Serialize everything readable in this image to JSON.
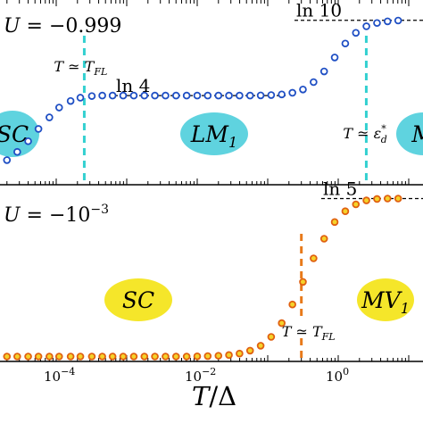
{
  "chart_data": [
    {
      "type": "scatter",
      "panel": "top",
      "title": "U = −0.999",
      "title_parts": {
        "var": "U",
        "rest": " = −0.999"
      },
      "xscale": "log",
      "xlim": [
        1e-05,
        10
      ],
      "ylim": [
        0.3,
        2.55
      ],
      "marker": {
        "edge": "#1f4fc4",
        "face": "#ffffff"
      },
      "series": [
        {
          "x": [
            1e-05,
            1.4e-05,
            2e-05,
            2.8e-05,
            4e-05,
            5.6e-05,
            8e-05,
            0.00011,
            0.00016,
            0.00022,
            0.00032,
            0.00045,
            0.00063,
            0.00089,
            0.00126,
            0.00178,
            0.00251,
            0.00355,
            0.00501,
            0.00708,
            0.01,
            0.0141,
            0.02,
            0.0282,
            0.0398,
            0.0562,
            0.0794,
            0.112,
            0.158,
            0.224,
            0.316,
            0.447,
            0.631,
            0.891,
            1.26,
            1.78,
            2.51,
            3.55,
            5.01,
            7.08
          ],
          "y": [
            0.45,
            0.52,
            0.6,
            0.7,
            0.83,
            0.98,
            1.12,
            1.24,
            1.32,
            1.36,
            1.38,
            1.386,
            1.386,
            1.386,
            1.386,
            1.386,
            1.386,
            1.386,
            1.386,
            1.386,
            1.386,
            1.386,
            1.386,
            1.386,
            1.386,
            1.386,
            1.388,
            1.392,
            1.4,
            1.42,
            1.46,
            1.55,
            1.68,
            1.85,
            2.02,
            2.15,
            2.23,
            2.27,
            2.29,
            2.3
          ]
        }
      ],
      "reference_lines": [
        {
          "label": "ln 4",
          "y": 1.386
        },
        {
          "label": "ln 10",
          "y": 2.303
        }
      ],
      "vertical_markers": [
        {
          "x": 0.00025,
          "color": "#33d0d0",
          "label": {
            "var": "T",
            "op": " ≃ ",
            "sym": "T",
            "sub": "FL"
          }
        },
        {
          "x": 2.5,
          "color": "#33d0d0",
          "label": {
            "var": "T",
            "op": " ≃ ",
            "sym": "ε",
            "sup": "*",
            "sub": "d"
          }
        }
      ],
      "regions": [
        {
          "label": "SC",
          "sub": "",
          "color": "#5fd3df"
        },
        {
          "label": "LM",
          "sub": "1",
          "color": "#5fd3df"
        },
        {
          "label": "M",
          "sub": "",
          "color": "#5fd3df"
        }
      ]
    },
    {
      "type": "scatter",
      "panel": "bottom",
      "title": "U = −10⁻³",
      "title_parts": {
        "var": "U",
        "rest": " = −10",
        "sup": "−3"
      },
      "xscale": "log",
      "xlabel": "T/Δ",
      "xlabel_parts": {
        "var": "T",
        "rest": "/Δ"
      },
      "xticks": [
        {
          "value": 0.0001,
          "base": "10",
          "exp": "−4"
        },
        {
          "value": 0.01,
          "base": "10",
          "exp": "−2"
        },
        {
          "value": 1,
          "base": "10",
          "exp": "0"
        }
      ],
      "xlim": [
        1e-05,
        10
      ],
      "ylim": [
        -0.05,
        1.75
      ],
      "marker": {
        "edge": "#e06010",
        "face": "#f5d22a"
      },
      "series": [
        {
          "x": [
            1e-05,
            1.4e-05,
            2e-05,
            2.8e-05,
            4e-05,
            5.6e-05,
            8e-05,
            0.00011,
            0.00016,
            0.00022,
            0.00032,
            0.00045,
            0.00063,
            0.00089,
            0.00126,
            0.00178,
            0.00251,
            0.00355,
            0.00501,
            0.00708,
            0.01,
            0.0141,
            0.02,
            0.0282,
            0.0398,
            0.0562,
            0.0794,
            0.112,
            0.158,
            0.224,
            0.316,
            0.447,
            0.631,
            0.891,
            1.26,
            1.78,
            2.51,
            3.55,
            5.01,
            7.08
          ],
          "y": [
            0,
            0,
            0,
            0,
            0,
            0,
            0,
            0,
            0,
            0,
            0,
            0,
            0,
            0,
            0,
            0,
            0,
            0,
            0,
            0,
            0.002,
            0.004,
            0.008,
            0.015,
            0.03,
            0.06,
            0.11,
            0.2,
            0.34,
            0.53,
            0.76,
            1.0,
            1.2,
            1.37,
            1.48,
            1.55,
            1.59,
            1.605,
            1.609,
            1.609
          ]
        }
      ],
      "reference_lines": [
        {
          "label": "ln 5",
          "y": 1.609
        }
      ],
      "vertical_markers": [
        {
          "x": 0.3,
          "color": "#e87a1a",
          "label": {
            "var": "T",
            "op": " ≃ ",
            "sym": "T",
            "sub": "FL"
          }
        }
      ],
      "regions": [
        {
          "label": "SC",
          "sub": "",
          "color": "#f5e62a"
        },
        {
          "label": "MV",
          "sub": "1",
          "color": "#f5e62a"
        }
      ]
    }
  ]
}
